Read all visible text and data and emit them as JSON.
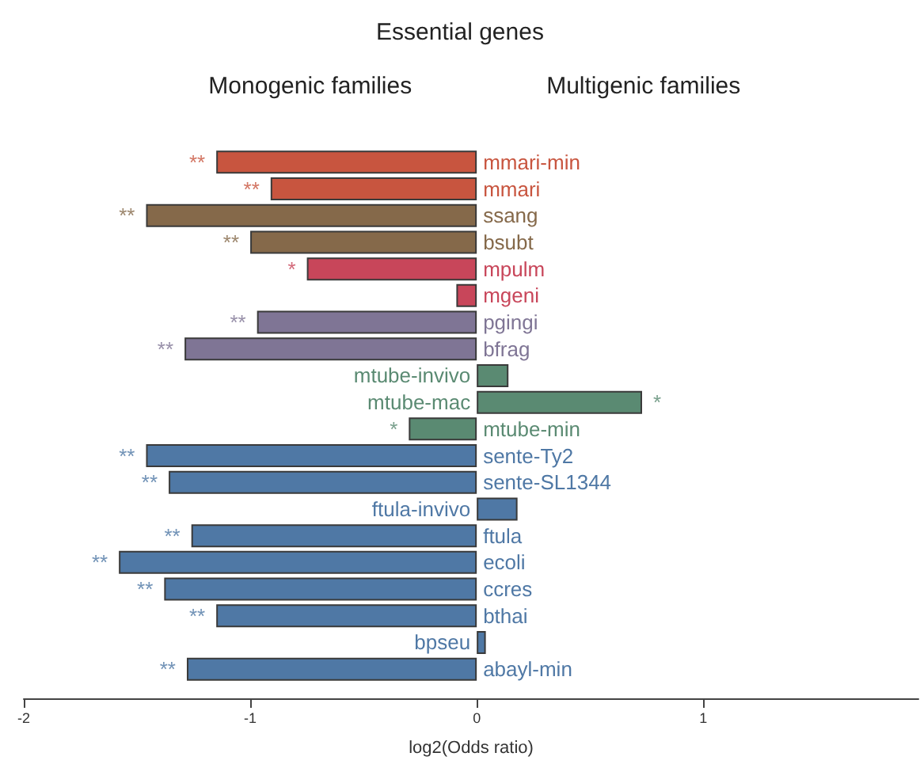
{
  "chart_data": {
    "type": "bar",
    "orientation": "horizontal",
    "title": "Essential genes",
    "xlabel": "log2(Odds ratio)",
    "categories": [
      "mmari-min",
      "mmari",
      "ssang",
      "bsubt",
      "mpulm",
      "mgeni",
      "pgingi",
      "bfrag",
      "mtube-invivo",
      "mtube-mac",
      "mtube-min",
      "sente-Ty2",
      "sente-SL1344",
      "ftula-invivo",
      "ftula",
      "ecoli",
      "ccres",
      "bthai",
      "bpseu",
      "abayl-min"
    ],
    "values": [
      -1.15,
      -0.91,
      -1.46,
      -1.0,
      -0.75,
      -0.09,
      -0.97,
      -1.29,
      0.14,
      0.73,
      -0.3,
      -1.46,
      -1.36,
      0.18,
      -1.26,
      -1.58,
      -1.38,
      -1.15,
      0.04,
      -1.28
    ],
    "colors": [
      "#c8553f",
      "#c8553f",
      "#85694a",
      "#85694a",
      "#c8465a",
      "#c8465a",
      "#7f7595",
      "#7f7595",
      "#5a8a72",
      "#5a8a72",
      "#5a8a72",
      "#4f78a5",
      "#4f78a5",
      "#4f78a5",
      "#4f78a5",
      "#4f78a5",
      "#4f78a5",
      "#4f78a5",
      "#4f78a5",
      "#4f78a5"
    ],
    "xlim": [
      -2,
      1.95
    ],
    "xticks": [
      -2,
      -1,
      0,
      1
    ],
    "grid": false,
    "annotations": [
      "Monogenic families",
      "Multigenic families",
      {
        "text": "**",
        "x": -1.15,
        "y": "mmari-min"
      },
      {
        "text": "**",
        "x": -0.91,
        "y": "mmari"
      },
      {
        "text": "**",
        "x": -1.46,
        "y": "ssang"
      },
      {
        "text": "**",
        "x": -1.0,
        "y": "bsubt"
      },
      {
        "text": "*",
        "x": -0.75,
        "y": "mpulm"
      },
      {
        "text": "**",
        "x": -0.97,
        "y": "pgingi"
      },
      {
        "text": "**",
        "x": -1.29,
        "y": "bfrag"
      },
      {
        "text": "*",
        "x": 0.73,
        "y": "mtube-mac"
      },
      {
        "text": "*",
        "x": -0.3,
        "y": "mtube-min"
      },
      {
        "text": "**",
        "x": -1.46,
        "y": "sente-Ty2"
      },
      {
        "text": "**",
        "x": -1.36,
        "y": "sente-SL1344"
      },
      {
        "text": "**",
        "x": -1.26,
        "y": "ftula"
      },
      {
        "text": "**",
        "x": -1.58,
        "y": "ecoli"
      },
      {
        "text": "**",
        "x": -1.38,
        "y": "ccres"
      },
      {
        "text": "**",
        "x": -1.15,
        "y": "bthai"
      },
      {
        "text": "**",
        "x": -1.28,
        "y": "abayl-min"
      }
    ]
  }
}
